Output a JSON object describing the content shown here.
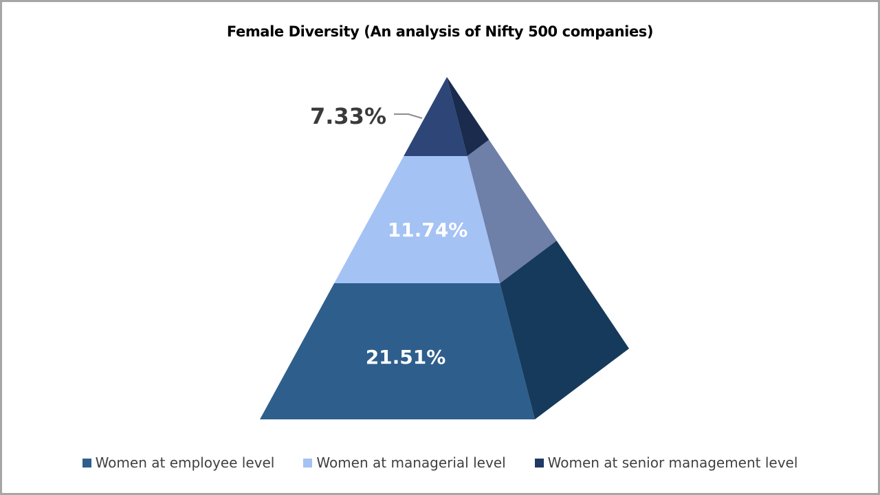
{
  "chart_data": {
    "type": "pyramid",
    "title": "Female Diversity (An analysis of Nifty 500 companies)",
    "categories": [
      "Women at employee level",
      "Women at managerial level",
      "Women at senior management level"
    ],
    "values": [
      21.51,
      11.74,
      7.33
    ],
    "unit": "%",
    "data_labels": [
      "21.51%",
      "11.74%",
      "7.33%"
    ],
    "legend": {
      "position": "bottom",
      "entries": [
        {
          "label": "Women at employee level",
          "color": "#2e5e8c"
        },
        {
          "label": "Women at managerial level",
          "color": "#a4c2f4"
        },
        {
          "label": "Women at senior management level",
          "color": "#1f3864"
        }
      ]
    },
    "colors": {
      "employee_front": "#2e5e8c",
      "employee_side": "#163a5c",
      "managerial_front": "#a4c2f4",
      "managerial_side": "#6e7fa8",
      "senior_front": "#2d4677",
      "senior_side": "#1a2b4e"
    },
    "grid": false
  }
}
